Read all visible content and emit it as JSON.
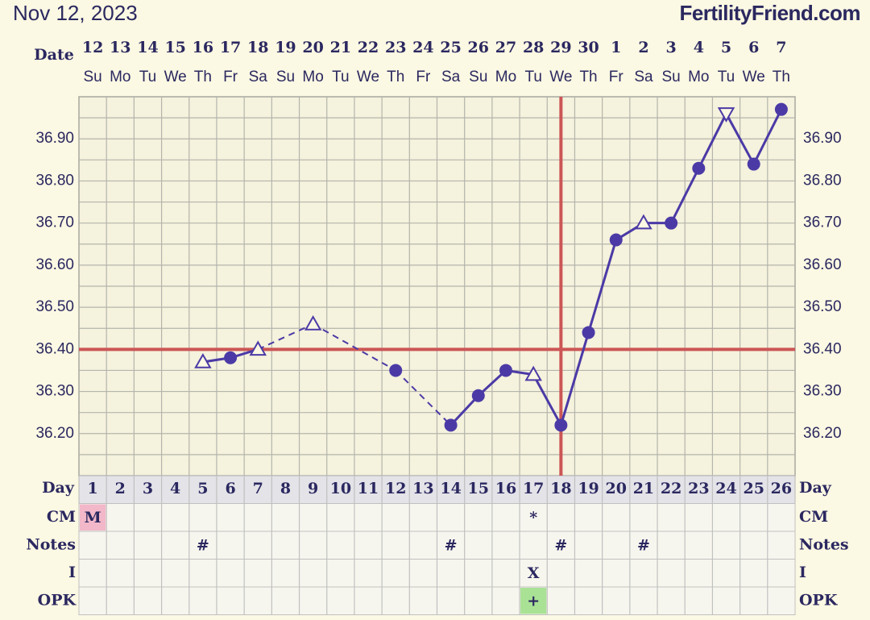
{
  "chart_data": {
    "type": "line",
    "title": "Nov 12, 2023",
    "site": "FertilityFriend.com",
    "date_label": "Date",
    "day_label": "Day",
    "dates": [
      12,
      13,
      14,
      15,
      16,
      17,
      18,
      19,
      20,
      21,
      22,
      23,
      24,
      25,
      26,
      27,
      28,
      29,
      30,
      1,
      2,
      3,
      4,
      5,
      6,
      7
    ],
    "weekdays": [
      "Su",
      "Mo",
      "Tu",
      "We",
      "Th",
      "Fr",
      "Sa",
      "Su",
      "Mo",
      "Tu",
      "We",
      "Th",
      "Fr",
      "Sa",
      "Su",
      "Mo",
      "Tu",
      "We",
      "Th",
      "Fr",
      "Sa",
      "Su",
      "Mo",
      "Tu",
      "We",
      "Th"
    ],
    "days": [
      1,
      2,
      3,
      4,
      5,
      6,
      7,
      8,
      9,
      10,
      11,
      12,
      13,
      14,
      15,
      16,
      17,
      18,
      19,
      20,
      21,
      22,
      23,
      24,
      25,
      26
    ],
    "values": [
      null,
      null,
      null,
      null,
      36.37,
      36.38,
      36.4,
      null,
      36.46,
      null,
      null,
      36.35,
      null,
      36.22,
      36.29,
      36.35,
      36.34,
      36.22,
      36.44,
      36.66,
      36.7,
      36.7,
      36.83,
      36.96,
      36.84,
      36.97
    ],
    "markers": [
      null,
      null,
      null,
      null,
      "open-up",
      "dot",
      "open-up",
      null,
      "open-up",
      null,
      null,
      "dot",
      null,
      "dot",
      "dot",
      "dot",
      "open-up",
      "dot",
      "dot",
      "dot",
      "open-up",
      "dot",
      "dot",
      "open-down",
      "dot",
      "dot"
    ],
    "color": "#4b3aa6",
    "ylim": [
      36.1,
      37.0
    ],
    "yticks": [
      {
        "value": 36.2,
        "label": "36.20"
      },
      {
        "value": 36.3,
        "label": "36.30"
      },
      {
        "value": 36.4,
        "label": "36.40"
      },
      {
        "value": 36.5,
        "label": "36.50"
      },
      {
        "value": 36.6,
        "label": "36.60"
      },
      {
        "value": 36.7,
        "label": "36.70"
      },
      {
        "value": 36.8,
        "label": "36.80"
      },
      {
        "value": 36.9,
        "label": "36.90"
      }
    ],
    "minor_yticks": [
      36.15,
      36.25,
      36.35,
      36.45,
      36.55,
      36.65,
      36.75,
      36.85,
      36.95
    ],
    "grid": true,
    "coverline": 36.4,
    "ovulation_day": 18,
    "marker_line_color": "#cc5555",
    "rows": [
      {
        "name": "CM",
        "values": [
          "M",
          null,
          null,
          null,
          null,
          null,
          null,
          null,
          null,
          null,
          null,
          null,
          null,
          null,
          null,
          null,
          "*",
          null,
          null,
          null,
          null,
          null,
          null,
          null,
          null,
          null
        ],
        "highlight": [
          1,
          "#f2b8c9"
        ]
      },
      {
        "name": "Notes",
        "values": [
          null,
          null,
          null,
          null,
          "#",
          null,
          null,
          null,
          null,
          null,
          null,
          null,
          null,
          "#",
          null,
          null,
          null,
          "#",
          null,
          null,
          "#",
          null,
          null,
          null,
          null,
          null
        ]
      },
      {
        "name": "I",
        "values": [
          null,
          null,
          null,
          null,
          null,
          null,
          null,
          null,
          null,
          null,
          null,
          null,
          null,
          null,
          null,
          null,
          "X",
          null,
          null,
          null,
          null,
          null,
          null,
          null,
          null,
          null
        ]
      },
      {
        "name": "OPK",
        "values": [
          null,
          null,
          null,
          null,
          null,
          null,
          null,
          null,
          null,
          null,
          null,
          null,
          null,
          null,
          null,
          null,
          "+",
          null,
          null,
          null,
          null,
          null,
          null,
          null,
          null,
          null
        ],
        "highlight": [
          17,
          "#a9e295"
        ]
      }
    ]
  }
}
